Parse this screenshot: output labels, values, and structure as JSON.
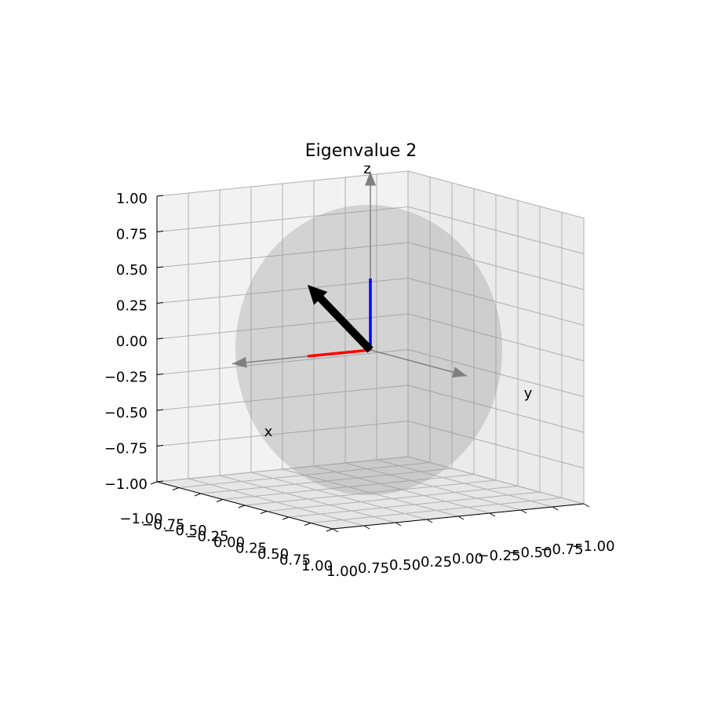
{
  "chart_data": {
    "type": "quiver3d",
    "title": "Eigenvalue 2",
    "xlabel": "x",
    "ylabel": "y",
    "zlabel": "z",
    "xlim": [
      -1,
      1
    ],
    "ylim": [
      -1,
      1
    ],
    "zlim": [
      -1,
      1
    ],
    "xticks": [
      {
        "value": -1,
        "label": "−1.00"
      },
      {
        "value": -0.75,
        "label": "−0.75"
      },
      {
        "value": -0.5,
        "label": "−0.50"
      },
      {
        "value": -0.25,
        "label": "−0.25"
      },
      {
        "value": 0,
        "label": "0.00"
      },
      {
        "value": 0.25,
        "label": "0.25"
      },
      {
        "value": 0.5,
        "label": "0.50"
      },
      {
        "value": 0.75,
        "label": "0.75"
      },
      {
        "value": 1,
        "label": "1.00"
      }
    ],
    "yticks": [
      {
        "value": -1,
        "label": "−1.00"
      },
      {
        "value": -0.75,
        "label": "−0.75"
      },
      {
        "value": -0.5,
        "label": "−0.50"
      },
      {
        "value": -0.25,
        "label": "−0.25"
      },
      {
        "value": 0,
        "label": "0.00"
      },
      {
        "value": 0.25,
        "label": "0.25"
      },
      {
        "value": 0.5,
        "label": "0.50"
      },
      {
        "value": 0.75,
        "label": "0.75"
      },
      {
        "value": 1,
        "label": "1.00"
      }
    ],
    "zticks": [
      {
        "value": -1,
        "label": "−1.00"
      },
      {
        "value": -0.75,
        "label": "−0.75"
      },
      {
        "value": -0.5,
        "label": "−0.50"
      },
      {
        "value": -0.25,
        "label": "−0.25"
      },
      {
        "value": 0,
        "label": "0.00"
      },
      {
        "value": 0.25,
        "label": "0.25"
      },
      {
        "value": 0.5,
        "label": "0.50"
      },
      {
        "value": 0.75,
        "label": "0.75"
      },
      {
        "value": 1,
        "label": "1.00"
      }
    ],
    "grid": true,
    "series": [
      {
        "color": "#000000",
        "values": [
          0.5,
          0,
          0.5
        ],
        "arrowhead": true
      },
      {
        "color": "#ff0000",
        "values": [
          0.5,
          0,
          0
        ],
        "arrowhead": false
      },
      {
        "color": "#0000ff",
        "values": [
          0,
          0,
          0.5
        ],
        "arrowhead": false
      }
    ]
  }
}
